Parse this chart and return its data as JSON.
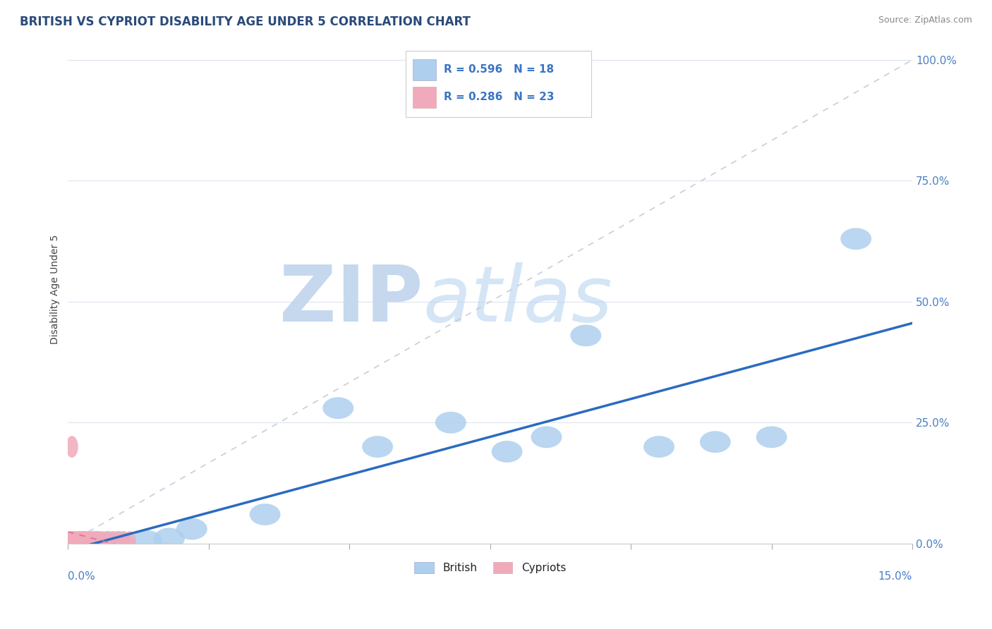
{
  "title": "BRITISH VS CYPRIOT DISABILITY AGE UNDER 5 CORRELATION CHART",
  "source": "Source: ZipAtlas.com",
  "ylabel": "Disability Age Under 5",
  "ytick_labels": [
    "0.0%",
    "25.0%",
    "50.0%",
    "75.0%",
    "100.0%"
  ],
  "ytick_values": [
    0,
    25,
    50,
    75,
    100
  ],
  "xlim": [
    0,
    15
  ],
  "ylim": [
    0,
    105
  ],
  "legend_british_R": "R = 0.596",
  "legend_british_N": "N = 18",
  "legend_cypriot_R": "R = 0.286",
  "legend_cypriot_N": "N = 23",
  "british_color": "#aecfee",
  "cypriot_color": "#f0aabb",
  "trendline_british_color": "#2a6bbf",
  "trendline_cypriot_color": "#e07090",
  "diagonal_color": "#c0c8d8",
  "background_color": "#ffffff",
  "grid_color": "#dde4ee",
  "watermark_zip": "ZIP",
  "watermark_atlas": "atlas",
  "watermark_color": "#d8e8f5",
  "british_x": [
    0.3,
    0.5,
    0.7,
    0.9,
    1.4,
    1.8,
    2.2,
    3.5,
    4.8,
    5.5,
    6.8,
    7.8,
    8.5,
    9.2,
    10.5,
    11.5,
    12.5,
    14.0
  ],
  "british_y": [
    0.3,
    0.3,
    0.3,
    0.3,
    0.5,
    1.0,
    3.0,
    6.0,
    28.0,
    20.0,
    25.0,
    19.0,
    22.0,
    43.0,
    20.0,
    21.0,
    22.0,
    63.0
  ],
  "cypriot_x": [
    0.05,
    0.08,
    0.1,
    0.12,
    0.15,
    0.18,
    0.2,
    0.22,
    0.25,
    0.28,
    0.3,
    0.35,
    0.4,
    0.45,
    0.5,
    0.55,
    0.6,
    0.7,
    0.8,
    0.9,
    1.0,
    1.1,
    0.07
  ],
  "cypriot_y": [
    0.3,
    0.3,
    0.3,
    0.3,
    0.3,
    0.3,
    0.3,
    0.3,
    0.3,
    0.3,
    0.3,
    0.3,
    0.3,
    0.3,
    0.3,
    0.3,
    0.3,
    0.3,
    0.3,
    0.3,
    0.3,
    0.3,
    20.0
  ]
}
